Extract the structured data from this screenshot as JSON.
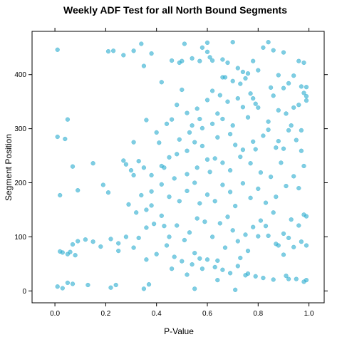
{
  "chart_data": {
    "type": "scatter",
    "title": "Weekly ADF Test for all North Bound Segments",
    "xlabel": "P-Value",
    "ylabel": "Segment Position",
    "xlim": [
      -0.09,
      1.06
    ],
    "ylim": [
      -22,
      480
    ],
    "x_ticks": [
      0.0,
      0.2,
      0.4,
      0.6,
      0.8,
      1.0
    ],
    "x_tick_labels": [
      "0.0",
      "0.2",
      "0.4",
      "0.6",
      "0.8",
      "1.0"
    ],
    "y_ticks": [
      0,
      100,
      200,
      300,
      400
    ],
    "y_tick_labels": [
      "0",
      "100",
      "200",
      "300",
      "400"
    ],
    "grid": false,
    "point_color": "#29ABCE",
    "series": [
      {
        "points": [
          [
            0.01,
            446
          ],
          [
            0.21,
            443
          ],
          [
            0.23,
            444
          ],
          [
            0.27,
            436
          ],
          [
            0.31,
            444
          ],
          [
            0.34,
            457
          ],
          [
            0.35,
            416
          ],
          [
            0.38,
            439
          ],
          [
            0.42,
            386
          ],
          [
            0.46,
            426
          ],
          [
            0.49,
            422
          ],
          [
            0.5,
            425
          ],
          [
            0.51,
            457
          ],
          [
            0.54,
            430
          ],
          [
            0.57,
            425
          ],
          [
            0.58,
            450
          ],
          [
            0.6,
            459
          ],
          [
            0.61,
            432
          ],
          [
            0.62,
            426
          ],
          [
            0.66,
            428
          ],
          [
            0.68,
            422
          ],
          [
            0.7,
            460
          ],
          [
            0.72,
            412
          ],
          [
            0.74,
            405
          ],
          [
            0.76,
            402
          ],
          [
            0.78,
            425
          ],
          [
            0.8,
            408
          ],
          [
            0.82,
            450
          ],
          [
            0.84,
            460
          ],
          [
            0.86,
            445
          ],
          [
            0.88,
            399
          ],
          [
            0.9,
            441
          ],
          [
            0.92,
            384
          ],
          [
            0.94,
            398
          ],
          [
            0.96,
            425
          ],
          [
            0.98,
            422
          ],
          [
            0.99,
            377
          ],
          [
            0.99,
            360
          ],
          [
            0.99,
            352
          ],
          [
            0.98,
            366
          ],
          [
            0.97,
            378
          ],
          [
            0.96,
            344
          ],
          [
            0.94,
            339
          ],
          [
            0.9,
            375
          ],
          [
            0.86,
            361
          ],
          [
            0.84,
            313
          ],
          [
            0.8,
            339
          ],
          [
            0.78,
            356
          ],
          [
            0.76,
            321
          ],
          [
            0.74,
            340
          ],
          [
            0.72,
            356
          ],
          [
            0.7,
            306
          ],
          [
            0.68,
            350
          ],
          [
            0.66,
            318
          ],
          [
            0.64,
            328
          ],
          [
            0.62,
            309
          ],
          [
            0.6,
            353
          ],
          [
            0.58,
            301
          ],
          [
            0.56,
            337
          ],
          [
            0.54,
            306
          ],
          [
            0.52,
            329
          ],
          [
            0.5,
            372
          ],
          [
            0.48,
            344
          ],
          [
            0.46,
            317
          ],
          [
            0.44,
            309
          ],
          [
            0.4,
            293
          ],
          [
            0.36,
            316
          ],
          [
            0.31,
            275
          ],
          [
            0.01,
            285
          ],
          [
            0.04,
            281
          ],
          [
            0.05,
            317
          ],
          [
            0.07,
            230
          ],
          [
            0.09,
            186
          ],
          [
            0.15,
            236
          ],
          [
            0.19,
            196
          ],
          [
            0.21,
            182
          ],
          [
            0.28,
            234
          ],
          [
            0.3,
            223
          ],
          [
            0.33,
            240
          ],
          [
            0.35,
            228
          ],
          [
            0.38,
            214
          ],
          [
            0.42,
            231
          ],
          [
            0.45,
            247
          ],
          [
            0.48,
            253
          ],
          [
            0.52,
            259
          ],
          [
            0.55,
            275
          ],
          [
            0.58,
            268
          ],
          [
            0.61,
            220
          ],
          [
            0.63,
            245
          ],
          [
            0.66,
            237
          ],
          [
            0.69,
            223
          ],
          [
            0.71,
            270
          ],
          [
            0.74,
            261
          ],
          [
            0.77,
            236
          ],
          [
            0.79,
            262
          ],
          [
            0.81,
            219
          ],
          [
            0.85,
            211
          ],
          [
            0.88,
            277
          ],
          [
            0.9,
            263
          ],
          [
            0.92,
            297
          ],
          [
            0.95,
            279
          ],
          [
            0.97,
            259
          ],
          [
            0.98,
            231
          ],
          [
            0.96,
            190
          ],
          [
            0.94,
            212
          ],
          [
            0.91,
            194
          ],
          [
            0.87,
            174
          ],
          [
            0.83,
            163
          ],
          [
            0.8,
            189
          ],
          [
            0.77,
            172
          ],
          [
            0.74,
            199
          ],
          [
            0.71,
            157
          ],
          [
            0.69,
            183
          ],
          [
            0.66,
            196
          ],
          [
            0.63,
            166
          ],
          [
            0.6,
            178
          ],
          [
            0.57,
            162
          ],
          [
            0.55,
            200
          ],
          [
            0.52,
            185
          ],
          [
            0.49,
            166
          ],
          [
            0.45,
            174
          ],
          [
            0.42,
            197
          ],
          [
            0.38,
            184
          ],
          [
            0.36,
            150
          ],
          [
            0.32,
            145
          ],
          [
            0.29,
            160
          ],
          [
            0.02,
            177
          ],
          [
            0.98,
            141
          ],
          [
            0.99,
            138
          ],
          [
            0.96,
            121
          ],
          [
            0.93,
            132
          ],
          [
            0.9,
            106
          ],
          [
            0.87,
            87
          ],
          [
            0.84,
            102
          ],
          [
            0.81,
            130
          ],
          [
            0.78,
            118
          ],
          [
            0.75,
            104
          ],
          [
            0.72,
            92
          ],
          [
            0.7,
            112
          ],
          [
            0.68,
            137
          ],
          [
            0.65,
            125
          ],
          [
            0.62,
            100
          ],
          [
            0.59,
            128
          ],
          [
            0.56,
            134
          ],
          [
            0.53,
            108
          ],
          [
            0.51,
            94
          ],
          [
            0.48,
            121
          ],
          [
            0.45,
            100
          ],
          [
            0.43,
            120
          ],
          [
            0.39,
            124
          ],
          [
            0.36,
            117
          ],
          [
            0.33,
            98
          ],
          [
            0.28,
            100
          ],
          [
            0.25,
            88
          ],
          [
            0.22,
            96
          ],
          [
            0.18,
            82
          ],
          [
            0.15,
            91
          ],
          [
            0.12,
            95
          ],
          [
            0.09,
            92
          ],
          [
            0.07,
            86
          ],
          [
            0.02,
            73
          ],
          [
            0.03,
            71
          ],
          [
            0.05,
            68
          ],
          [
            0.08,
            66
          ],
          [
            0.25,
            74
          ],
          [
            0.31,
            80
          ],
          [
            0.36,
            58
          ],
          [
            0.4,
            68
          ],
          [
            0.44,
            84
          ],
          [
            0.47,
            63
          ],
          [
            0.5,
            55
          ],
          [
            0.54,
            49
          ],
          [
            0.57,
            60
          ],
          [
            0.6,
            58
          ],
          [
            0.63,
            44
          ],
          [
            0.66,
            39
          ],
          [
            0.69,
            33
          ],
          [
            0.72,
            46
          ],
          [
            0.75,
            29
          ],
          [
            0.79,
            27
          ],
          [
            0.82,
            24
          ],
          [
            0.86,
            21
          ],
          [
            0.91,
            28
          ],
          [
            0.95,
            22
          ],
          [
            0.98,
            17
          ],
          [
            0.99,
            20
          ],
          [
            0.9,
            67
          ],
          [
            0.94,
            81
          ],
          [
            0.97,
            91
          ],
          [
            0.99,
            84
          ],
          [
            0.92,
            98
          ],
          [
            0.88,
            84
          ],
          [
            0.01,
            8
          ],
          [
            0.03,
            5
          ],
          [
            0.05,
            15
          ],
          [
            0.07,
            13
          ],
          [
            0.13,
            11
          ],
          [
            0.22,
            6
          ],
          [
            0.24,
            11
          ],
          [
            0.35,
            4
          ],
          [
            0.37,
            12
          ],
          [
            0.55,
            4
          ],
          [
            0.64,
            20
          ],
          [
            0.71,
            2
          ],
          [
            0.76,
            32
          ],
          [
            0.92,
            22
          ],
          [
            0.06,
            72
          ],
          [
            0.6,
            442
          ],
          [
            0.66,
            395
          ],
          [
            0.7,
            388
          ],
          [
            0.75,
            393
          ],
          [
            0.85,
            376
          ],
          [
            0.88,
            334
          ],
          [
            0.91,
            328
          ],
          [
            0.93,
            306
          ],
          [
            0.97,
            297
          ],
          [
            0.82,
            287
          ],
          [
            0.78,
            276
          ],
          [
            0.73,
            248
          ],
          [
            0.69,
            290
          ],
          [
            0.64,
            284
          ],
          [
            0.6,
            243
          ],
          [
            0.56,
            228
          ],
          [
            0.52,
            216
          ],
          [
            0.47,
            208
          ],
          [
            0.43,
            228
          ],
          [
            0.41,
            274
          ],
          [
            0.49,
            280
          ],
          [
            0.53,
            293
          ],
          [
            0.57,
            318
          ],
          [
            0.62,
            370
          ],
          [
            0.65,
            362
          ],
          [
            0.67,
            395
          ],
          [
            0.73,
            383
          ],
          [
            0.77,
            365
          ],
          [
            0.79,
            346
          ],
          [
            0.84,
            298
          ],
          [
            0.87,
            265
          ],
          [
            0.89,
            237
          ],
          [
            0.86,
            145
          ],
          [
            0.83,
            120
          ],
          [
            0.8,
            101
          ],
          [
            0.76,
            74
          ],
          [
            0.73,
            61
          ],
          [
            0.67,
            80
          ],
          [
            0.64,
            56
          ],
          [
            0.58,
            41
          ],
          [
            0.55,
            70
          ],
          [
            0.52,
            30
          ],
          [
            0.46,
            41
          ],
          [
            0.42,
            139
          ],
          [
            0.38,
            158
          ],
          [
            0.34,
            177
          ],
          [
            0.31,
            214
          ],
          [
            0.27,
            241
          ]
        ]
      }
    ]
  }
}
